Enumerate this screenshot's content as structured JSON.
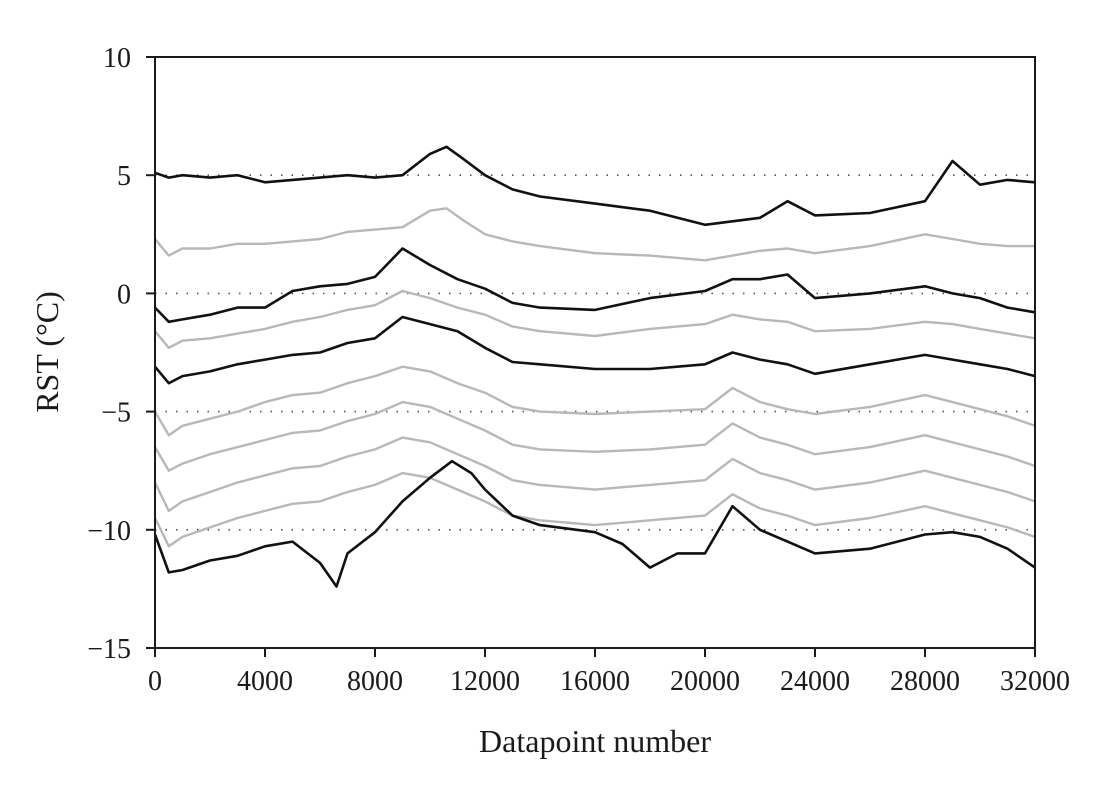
{
  "chart_data": {
    "type": "line",
    "title": "",
    "xlabel": "Datapoint number",
    "ylabel": "RST (°C)",
    "xlim": [
      0,
      32000
    ],
    "ylim": [
      -15,
      10
    ],
    "xticks": [
      0,
      4000,
      8000,
      12000,
      16000,
      20000,
      24000,
      28000,
      32000
    ],
    "xtick_labels": [
      "0",
      "4000",
      "8000",
      "12000",
      "16000",
      "20000",
      "24000",
      "28000",
      "32000"
    ],
    "yticks": [
      -15,
      -10,
      -5,
      0,
      5,
      10
    ],
    "ytick_labels": [
      "−15",
      "−10",
      "−5",
      "0",
      "5",
      "10"
    ],
    "reference_lines": [
      5,
      0,
      -5,
      -10
    ],
    "grid": false,
    "legend": "none",
    "colors": {
      "dark": "#111111",
      "light": "#b8b8b8",
      "reference": "#555555"
    },
    "series": [
      {
        "color": "dark",
        "x": [
          0,
          500,
          1000,
          2000,
          3000,
          4000,
          5000,
          6000,
          7000,
          8000,
          9000,
          10000,
          10600,
          11200,
          12000,
          13000,
          14000,
          16000,
          18000,
          20000,
          22000,
          23000,
          24000,
          26000,
          28000,
          29000,
          30000,
          31000,
          32000
        ],
        "values": [
          5.1,
          4.9,
          5.0,
          4.9,
          5.0,
          4.7,
          4.8,
          4.9,
          5.0,
          4.9,
          5.0,
          5.9,
          6.2,
          5.7,
          5.0,
          4.4,
          4.1,
          3.8,
          3.5,
          2.9,
          3.2,
          3.9,
          3.3,
          3.4,
          3.9,
          5.6,
          4.6,
          4.8,
          4.7
        ]
      },
      {
        "color": "light",
        "x": [
          0,
          500,
          1000,
          2000,
          3000,
          4000,
          5000,
          6000,
          7000,
          8000,
          9000,
          10000,
          10600,
          11200,
          12000,
          13000,
          14000,
          16000,
          18000,
          20000,
          22000,
          23000,
          24000,
          26000,
          28000,
          29000,
          30000,
          31000,
          32000
        ],
        "values": [
          2.3,
          1.6,
          1.9,
          1.9,
          2.1,
          2.1,
          2.2,
          2.3,
          2.6,
          2.7,
          2.8,
          3.5,
          3.6,
          3.1,
          2.5,
          2.2,
          2.0,
          1.7,
          1.6,
          1.4,
          1.8,
          1.9,
          1.7,
          2.0,
          2.5,
          2.3,
          2.1,
          2.0,
          2.0
        ]
      },
      {
        "color": "dark",
        "x": [
          0,
          500,
          1000,
          2000,
          3000,
          4000,
          5000,
          6000,
          7000,
          8000,
          9000,
          10000,
          11000,
          12000,
          13000,
          14000,
          16000,
          18000,
          20000,
          21000,
          22000,
          23000,
          24000,
          26000,
          28000,
          29000,
          30000,
          31000,
          32000
        ],
        "values": [
          -0.6,
          -1.2,
          -1.1,
          -0.9,
          -0.6,
          -0.6,
          0.1,
          0.3,
          0.4,
          0.7,
          1.9,
          1.2,
          0.6,
          0.2,
          -0.4,
          -0.6,
          -0.7,
          -0.2,
          0.1,
          0.6,
          0.6,
          0.8,
          -0.2,
          0.0,
          0.3,
          0.0,
          -0.2,
          -0.6,
          -0.8
        ]
      },
      {
        "color": "light",
        "x": [
          0,
          500,
          1000,
          2000,
          3000,
          4000,
          5000,
          6000,
          7000,
          8000,
          9000,
          10000,
          11000,
          12000,
          13000,
          14000,
          16000,
          18000,
          20000,
          21000,
          22000,
          23000,
          24000,
          26000,
          28000,
          29000,
          30000,
          31000,
          32000
        ],
        "values": [
          -1.6,
          -2.3,
          -2.0,
          -1.9,
          -1.7,
          -1.5,
          -1.2,
          -1.0,
          -0.7,
          -0.5,
          0.1,
          -0.2,
          -0.6,
          -0.9,
          -1.4,
          -1.6,
          -1.8,
          -1.5,
          -1.3,
          -0.9,
          -1.1,
          -1.2,
          -1.6,
          -1.5,
          -1.2,
          -1.3,
          -1.5,
          -1.7,
          -1.9
        ]
      },
      {
        "color": "dark",
        "x": [
          0,
          500,
          1000,
          2000,
          3000,
          4000,
          5000,
          6000,
          7000,
          8000,
          9000,
          10000,
          11000,
          12000,
          13000,
          14000,
          16000,
          18000,
          20000,
          21000,
          22000,
          23000,
          24000,
          26000,
          28000,
          29000,
          30000,
          31000,
          32000
        ],
        "values": [
          -3.1,
          -3.8,
          -3.5,
          -3.3,
          -3.0,
          -2.8,
          -2.6,
          -2.5,
          -2.1,
          -1.9,
          -1.0,
          -1.3,
          -1.6,
          -2.3,
          -2.9,
          -3.0,
          -3.2,
          -3.2,
          -3.0,
          -2.5,
          -2.8,
          -3.0,
          -3.4,
          -3.0,
          -2.6,
          -2.8,
          -3.0,
          -3.2,
          -3.5
        ]
      },
      {
        "color": "light",
        "x": [
          0,
          500,
          1000,
          2000,
          3000,
          4000,
          5000,
          6000,
          7000,
          8000,
          9000,
          10000,
          11000,
          12000,
          13000,
          14000,
          16000,
          18000,
          20000,
          21000,
          22000,
          23000,
          24000,
          26000,
          28000,
          29000,
          30000,
          31000,
          32000
        ],
        "values": [
          -5.0,
          -6.0,
          -5.6,
          -5.3,
          -5.0,
          -4.6,
          -4.3,
          -4.2,
          -3.8,
          -3.5,
          -3.1,
          -3.3,
          -3.8,
          -4.2,
          -4.8,
          -5.0,
          -5.1,
          -5.0,
          -4.9,
          -4.0,
          -4.6,
          -4.9,
          -5.1,
          -4.8,
          -4.3,
          -4.6,
          -4.9,
          -5.2,
          -5.6
        ]
      },
      {
        "color": "light",
        "x": [
          0,
          500,
          1000,
          2000,
          3000,
          4000,
          5000,
          6000,
          7000,
          8000,
          9000,
          10000,
          11000,
          12000,
          13000,
          14000,
          16000,
          18000,
          20000,
          21000,
          22000,
          23000,
          24000,
          26000,
          28000,
          29000,
          30000,
          31000,
          32000
        ],
        "values": [
          -6.5,
          -7.5,
          -7.2,
          -6.8,
          -6.5,
          -6.2,
          -5.9,
          -5.8,
          -5.4,
          -5.1,
          -4.6,
          -4.8,
          -5.3,
          -5.8,
          -6.4,
          -6.6,
          -6.7,
          -6.6,
          -6.4,
          -5.5,
          -6.1,
          -6.4,
          -6.8,
          -6.5,
          -6.0,
          -6.3,
          -6.6,
          -6.9,
          -7.3
        ]
      },
      {
        "color": "light",
        "x": [
          0,
          500,
          1000,
          2000,
          3000,
          4000,
          5000,
          6000,
          7000,
          8000,
          9000,
          10000,
          11000,
          12000,
          13000,
          14000,
          16000,
          18000,
          20000,
          21000,
          22000,
          23000,
          24000,
          26000,
          28000,
          29000,
          30000,
          31000,
          32000
        ],
        "values": [
          -8.0,
          -9.2,
          -8.8,
          -8.4,
          -8.0,
          -7.7,
          -7.4,
          -7.3,
          -6.9,
          -6.6,
          -6.1,
          -6.3,
          -6.8,
          -7.3,
          -7.9,
          -8.1,
          -8.3,
          -8.1,
          -7.9,
          -7.0,
          -7.6,
          -7.9,
          -8.3,
          -8.0,
          -7.5,
          -7.8,
          -8.1,
          -8.4,
          -8.8
        ]
      },
      {
        "color": "light",
        "x": [
          0,
          500,
          1000,
          2000,
          3000,
          4000,
          5000,
          6000,
          7000,
          8000,
          9000,
          10000,
          11000,
          12000,
          13000,
          14000,
          16000,
          18000,
          20000,
          21000,
          22000,
          23000,
          24000,
          26000,
          28000,
          29000,
          30000,
          31000,
          32000
        ],
        "values": [
          -9.5,
          -10.7,
          -10.3,
          -9.9,
          -9.5,
          -9.2,
          -8.9,
          -8.8,
          -8.4,
          -8.1,
          -7.6,
          -7.8,
          -8.3,
          -8.8,
          -9.4,
          -9.6,
          -9.8,
          -9.6,
          -9.4,
          -8.5,
          -9.1,
          -9.4,
          -9.8,
          -9.5,
          -9.0,
          -9.3,
          -9.6,
          -9.9,
          -10.3
        ]
      },
      {
        "color": "dark",
        "x": [
          0,
          500,
          1000,
          2000,
          3000,
          4000,
          5000,
          6000,
          6600,
          7000,
          8000,
          9000,
          10000,
          10800,
          11500,
          12000,
          13000,
          14000,
          16000,
          17000,
          18000,
          19000,
          20000,
          21000,
          22000,
          23000,
          24000,
          26000,
          28000,
          29000,
          30000,
          31000,
          32000
        ],
        "values": [
          -10.2,
          -11.8,
          -11.7,
          -11.3,
          -11.1,
          -10.7,
          -10.5,
          -11.4,
          -12.4,
          -11.0,
          -10.1,
          -8.8,
          -7.8,
          -7.1,
          -7.6,
          -8.3,
          -9.4,
          -9.8,
          -10.1,
          -10.6,
          -11.6,
          -11.0,
          -11.0,
          -9.0,
          -10.0,
          -10.5,
          -11.0,
          -10.8,
          -10.2,
          -10.1,
          -10.3,
          -10.8,
          -11.6
        ]
      }
    ]
  }
}
